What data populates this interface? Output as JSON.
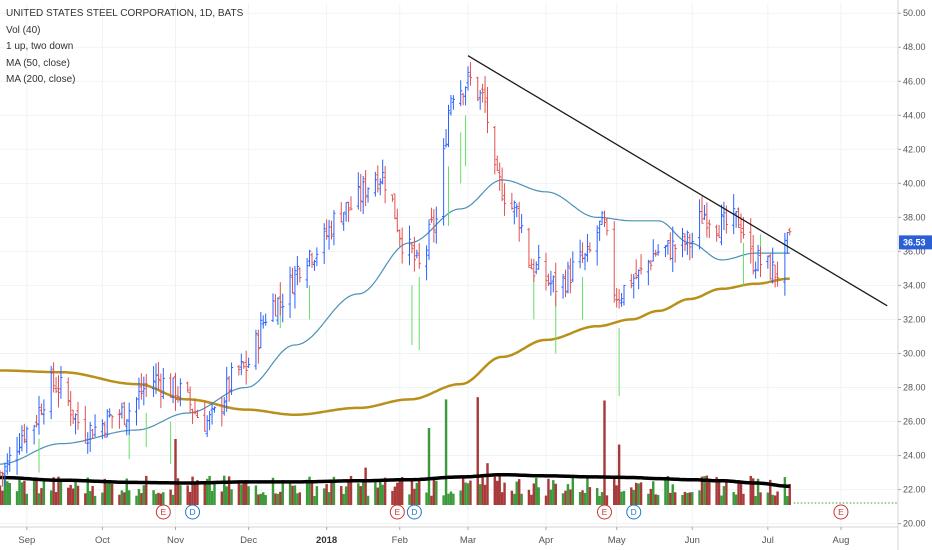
{
  "legend": {
    "title": "UNITED STATES STEEL CORPORATION, 1D, BATS",
    "vol": "Vol (40)",
    "pattern": "1 up, two down",
    "ma50": "MA (50, close)",
    "ma200": "MA (200, close)"
  },
  "colors": {
    "up": "#2962ff",
    "down": "#e05050",
    "ma50": "#4a90b8",
    "ma200": "#b8901a",
    "vol_up": "#3c9a3c",
    "vol_down": "#a83a3a",
    "vol_ma": "#000000",
    "trendline": "#1a1a1a",
    "pin": "#66dd66",
    "price_tag": "#2a5fd6",
    "event_e": "#cc3333",
    "event_d": "#2277cc"
  },
  "chart_data": {
    "type": "candlestick",
    "y_axis": {
      "range": [
        19.8,
        50.6
      ],
      "ticks": [
        "20.00",
        "22.00",
        "24.00",
        "26.00",
        "28.00",
        "30.00",
        "32.00",
        "34.00",
        "36.00",
        "38.00",
        "40.00",
        "42.00",
        "44.00",
        "46.00",
        "48.00",
        "50.00"
      ],
      "current_price": "36.53"
    },
    "x_axis": {
      "range": [
        "2017-08-21",
        "2018-08-24"
      ],
      "ticks": [
        {
          "label": "Sep",
          "date": "2017-09-01"
        },
        {
          "label": "Oct",
          "date": "2017-10-02"
        },
        {
          "label": "Nov",
          "date": "2017-11-01"
        },
        {
          "label": "Dec",
          "date": "2017-12-01"
        },
        {
          "label": "2018",
          "date": "2018-01-02",
          "bold": true
        },
        {
          "label": "Feb",
          "date": "2018-02-01"
        },
        {
          "label": "Mar",
          "date": "2018-03-01"
        },
        {
          "label": "Apr",
          "date": "2018-04-02"
        },
        {
          "label": "May",
          "date": "2018-05-01"
        },
        {
          "label": "Jun",
          "date": "2018-06-01"
        },
        {
          "label": "Jul",
          "date": "2018-07-02"
        },
        {
          "label": "Aug",
          "date": "2018-08-01"
        }
      ]
    },
    "price_anchors": [
      [
        "2017-08-21",
        23.0
      ],
      [
        "2017-09-01",
        25.5
      ],
      [
        "2017-09-12",
        28.2
      ],
      [
        "2017-09-26",
        25.5
      ],
      [
        "2017-10-10",
        26.5
      ],
      [
        "2017-10-24",
        28.5
      ],
      [
        "2017-11-01",
        27.8
      ],
      [
        "2017-11-14",
        26.0
      ],
      [
        "2017-11-28",
        29.0
      ],
      [
        "2017-12-12",
        33.0
      ],
      [
        "2017-12-27",
        36.0
      ],
      [
        "2018-01-10",
        38.5
      ],
      [
        "2018-01-24",
        40.5
      ],
      [
        "2018-02-05",
        36.0
      ],
      [
        "2018-02-09",
        35.0
      ],
      [
        "2018-02-15",
        37.5
      ],
      [
        "2018-02-23",
        45.5
      ],
      [
        "2018-03-02",
        46.0
      ],
      [
        "2018-03-07",
        45.0
      ],
      [
        "2018-03-13",
        40.0
      ],
      [
        "2018-03-20",
        38.5
      ],
      [
        "2018-03-28",
        35.0
      ],
      [
        "2018-04-06",
        34.0
      ],
      [
        "2018-04-18",
        35.5
      ],
      [
        "2018-04-25",
        37.5
      ],
      [
        "2018-05-01",
        33.5
      ],
      [
        "2018-05-09",
        34.5
      ],
      [
        "2018-05-18",
        36.0
      ],
      [
        "2018-05-31",
        36.5
      ],
      [
        "2018-06-06",
        38.2
      ],
      [
        "2018-06-14",
        37.5
      ],
      [
        "2018-06-20",
        37.8
      ],
      [
        "2018-06-26",
        35.5
      ],
      [
        "2018-07-06",
        34.8
      ],
      [
        "2018-07-11",
        36.5
      ]
    ],
    "ma50_anchors": [
      [
        "2017-08-21",
        23.5
      ],
      [
        "2017-09-15",
        24.7
      ],
      [
        "2017-10-16",
        25.5
      ],
      [
        "2017-11-06",
        26.5
      ],
      [
        "2017-11-30",
        28.0
      ],
      [
        "2017-12-20",
        30.5
      ],
      [
        "2018-01-15",
        33.5
      ],
      [
        "2018-02-05",
        36.5
      ],
      [
        "2018-02-26",
        38.5
      ],
      [
        "2018-03-15",
        40.2
      ],
      [
        "2018-04-02",
        39.5
      ],
      [
        "2018-04-23",
        38.0
      ],
      [
        "2018-05-07",
        37.8
      ],
      [
        "2018-05-18",
        37.8
      ],
      [
        "2018-05-31",
        36.5
      ],
      [
        "2018-06-13",
        35.5
      ],
      [
        "2018-06-27",
        35.9
      ],
      [
        "2018-07-11",
        35.9
      ]
    ],
    "ma200_anchors": [
      [
        "2017-08-21",
        29.0
      ],
      [
        "2017-09-15",
        28.9
      ],
      [
        "2017-10-16",
        28.2
      ],
      [
        "2017-11-06",
        27.3
      ],
      [
        "2017-11-30",
        26.7
      ],
      [
        "2017-12-20",
        26.4
      ],
      [
        "2018-01-15",
        26.8
      ],
      [
        "2018-02-05",
        27.3
      ],
      [
        "2018-02-26",
        28.2
      ],
      [
        "2018-03-15",
        29.8
      ],
      [
        "2018-04-02",
        30.8
      ],
      [
        "2018-04-23",
        31.6
      ],
      [
        "2018-05-07",
        32.0
      ],
      [
        "2018-05-18",
        32.5
      ],
      [
        "2018-05-31",
        33.2
      ],
      [
        "2018-06-13",
        33.8
      ],
      [
        "2018-06-27",
        34.1
      ],
      [
        "2018-07-11",
        34.4
      ]
    ],
    "trendline": [
      [
        "2018-03-01",
        47.5
      ],
      [
        "2018-08-20",
        32.8
      ]
    ],
    "pins": [
      [
        "2017-09-06",
        23.0,
        25.0
      ],
      [
        "2017-10-13",
        23.8,
        25.5
      ],
      [
        "2017-10-20",
        24.5,
        26.5
      ],
      [
        "2017-10-30",
        23.5,
        26.0
      ],
      [
        "2017-12-14",
        31.5,
        33.0
      ],
      [
        "2017-12-26",
        32.0,
        34.0
      ],
      [
        "2018-02-06",
        30.5,
        34.0
      ],
      [
        "2018-02-09",
        30.2,
        34.5
      ],
      [
        "2018-02-21",
        37.5,
        41.0
      ],
      [
        "2018-02-26",
        40.0,
        43.0
      ],
      [
        "2018-02-28",
        41.0,
        44.0
      ],
      [
        "2018-03-28",
        32.0,
        34.5
      ],
      [
        "2018-04-06",
        30.0,
        33.5
      ],
      [
        "2018-04-17",
        32.0,
        34.5
      ],
      [
        "2018-05-02",
        27.5,
        31.5
      ],
      [
        "2018-06-22",
        34.0,
        36.5
      ],
      [
        "2018-06-29",
        34.5,
        37.0
      ]
    ],
    "volume": {
      "max": 100,
      "base_level": 18,
      "spikes": [
        [
          "2017-11-01",
          60
        ],
        [
          "2018-02-20",
          96
        ],
        [
          "2018-03-05",
          98
        ],
        [
          "2018-02-13",
          70
        ],
        [
          "2018-04-26",
          95
        ],
        [
          "2018-05-02",
          55
        ],
        [
          "2018-03-09",
          38
        ],
        [
          "2018-01-18",
          34
        ]
      ],
      "ma_anchors": [
        [
          "2017-08-21",
          25
        ],
        [
          "2017-09-15",
          22.5
        ],
        [
          "2017-10-16",
          20.5
        ],
        [
          "2017-11-06",
          20
        ],
        [
          "2017-11-30",
          21
        ],
        [
          "2017-12-20",
          21
        ],
        [
          "2018-01-15",
          22
        ],
        [
          "2018-02-05",
          23
        ],
        [
          "2018-02-26",
          25.5
        ],
        [
          "2018-03-15",
          27.5
        ],
        [
          "2018-04-02",
          26.5
        ],
        [
          "2018-04-23",
          25.5
        ],
        [
          "2018-05-07",
          25
        ],
        [
          "2018-05-18",
          24
        ],
        [
          "2018-05-31",
          23
        ],
        [
          "2018-06-13",
          22
        ],
        [
          "2018-06-27",
          20
        ],
        [
          "2018-07-11",
          17
        ]
      ]
    },
    "events": [
      {
        "type": "E",
        "date": "2017-10-27"
      },
      {
        "type": "D",
        "date": "2017-11-08"
      },
      {
        "type": "E",
        "date": "2018-01-31"
      },
      {
        "type": "D",
        "date": "2018-02-07"
      },
      {
        "type": "E",
        "date": "2018-04-26"
      },
      {
        "type": "D",
        "date": "2018-05-08"
      },
      {
        "type": "E",
        "date": "2018-08-01",
        "future": true
      }
    ]
  }
}
